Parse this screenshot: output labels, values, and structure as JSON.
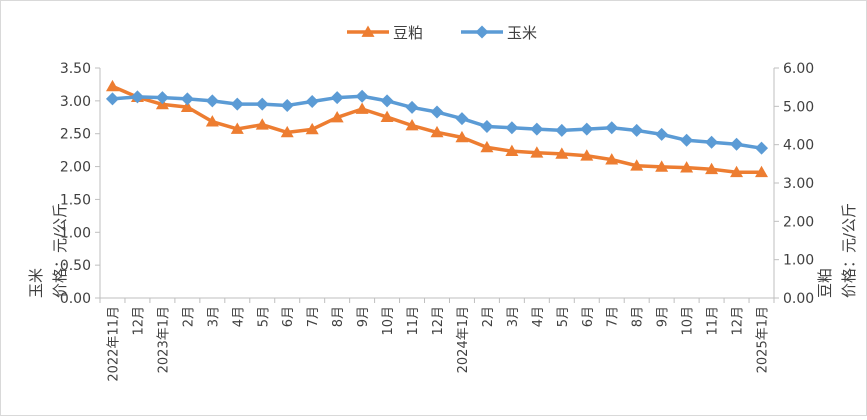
{
  "chart_data": {
    "type": "line",
    "categories": [
      "2022年11月",
      "12月",
      "2023年1月",
      "2月",
      "3月",
      "4月",
      "5月",
      "6月",
      "7月",
      "8月",
      "9月",
      "10月",
      "11月",
      "12月",
      "2024年1月",
      "2月",
      "3月",
      "4月",
      "5月",
      "6月",
      "7月",
      "8月",
      "9月",
      "10月",
      "11月",
      "12月",
      "2025年1月"
    ],
    "series": [
      {
        "name": "豆粕",
        "axis": "right",
        "color": "#ed7d31",
        "marker": "triangle",
        "values": [
          5.52,
          5.24,
          5.05,
          4.98,
          4.6,
          4.41,
          4.52,
          4.32,
          4.4,
          4.71,
          4.93,
          4.72,
          4.5,
          4.32,
          4.19,
          3.93,
          3.83,
          3.79,
          3.76,
          3.71,
          3.61,
          3.45,
          3.42,
          3.4,
          3.36,
          3.28,
          3.28
        ]
      },
      {
        "name": "玉米",
        "axis": "left",
        "color": "#5b9bd5",
        "marker": "diamond",
        "values": [
          3.03,
          3.06,
          3.05,
          3.03,
          3.0,
          2.95,
          2.95,
          2.93,
          2.99,
          3.05,
          3.07,
          3.0,
          2.9,
          2.83,
          2.73,
          2.61,
          2.59,
          2.57,
          2.55,
          2.57,
          2.59,
          2.55,
          2.49,
          2.4,
          2.37,
          2.34,
          2.28
        ]
      }
    ],
    "y_left": {
      "label_lines": [
        "价格：元/公斤",
        "玉米"
      ],
      "ticks": [
        "0.00",
        "0.50",
        "1.00",
        "1.50",
        "2.00",
        "2.50",
        "3.00",
        "3.50"
      ],
      "ylim": [
        0,
        3.5
      ]
    },
    "y_right": {
      "label_lines": [
        "价格：元/公斤",
        "豆粕"
      ],
      "ticks": [
        "0.00",
        "1.00",
        "2.00",
        "3.00",
        "4.00",
        "5.00",
        "6.00"
      ],
      "ylim": [
        0,
        6
      ]
    },
    "legend": {
      "position": "top-center",
      "entries": [
        "豆粕",
        "玉米"
      ]
    },
    "grid": false
  }
}
